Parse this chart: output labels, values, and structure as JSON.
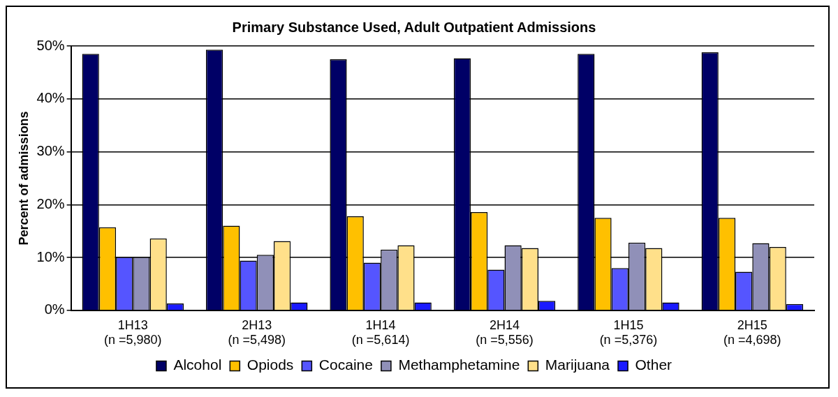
{
  "chart_data": {
    "type": "bar",
    "title": "Primary Substance Used, Adult Outpatient Admissions",
    "ylabel": "Percent of admissions",
    "categories": [
      "1H13\n(n =5,980)",
      "2H13\n(n =5,498)",
      "1H14\n(n =5,614)",
      "2H14\n(n =5,556)",
      "1H15\n(n =5,376)",
      "2H15\n(n =4,698)"
    ],
    "series": [
      {
        "name": "Alcohol",
        "color": "#000066",
        "values": [
          48.5,
          49.3,
          47.5,
          47.7,
          48.5,
          48.8
        ]
      },
      {
        "name": "Opiods",
        "color": "#ffc000",
        "values": [
          15.7,
          16.0,
          17.8,
          18.6,
          17.5,
          17.5
        ]
      },
      {
        "name": "Cocaine",
        "color": "#5555ff",
        "values": [
          10.1,
          9.4,
          9.0,
          7.7,
          8.0,
          7.3
        ]
      },
      {
        "name": "Methamphetamine",
        "color": "#9090b8",
        "values": [
          10.1,
          10.5,
          11.5,
          12.3,
          12.8,
          12.7
        ]
      },
      {
        "name": "Marijuana",
        "color": "#ffe08a",
        "values": [
          13.6,
          13.1,
          12.3,
          11.8,
          11.8,
          12.0
        ]
      },
      {
        "name": "Other",
        "color": "#1a1aff",
        "values": [
          1.3,
          1.5,
          1.5,
          1.8,
          1.5,
          1.2
        ]
      }
    ],
    "ylim": [
      0,
      50
    ],
    "yticks": [
      {
        "value": 0,
        "label": "0%"
      },
      {
        "value": 10,
        "label": "10%"
      },
      {
        "value": 20,
        "label": "20%"
      },
      {
        "value": 30,
        "label": "30%"
      },
      {
        "value": 40,
        "label": "40%"
      },
      {
        "value": 50,
        "label": "50%"
      }
    ],
    "grid": "y",
    "legend": "bottom"
  }
}
